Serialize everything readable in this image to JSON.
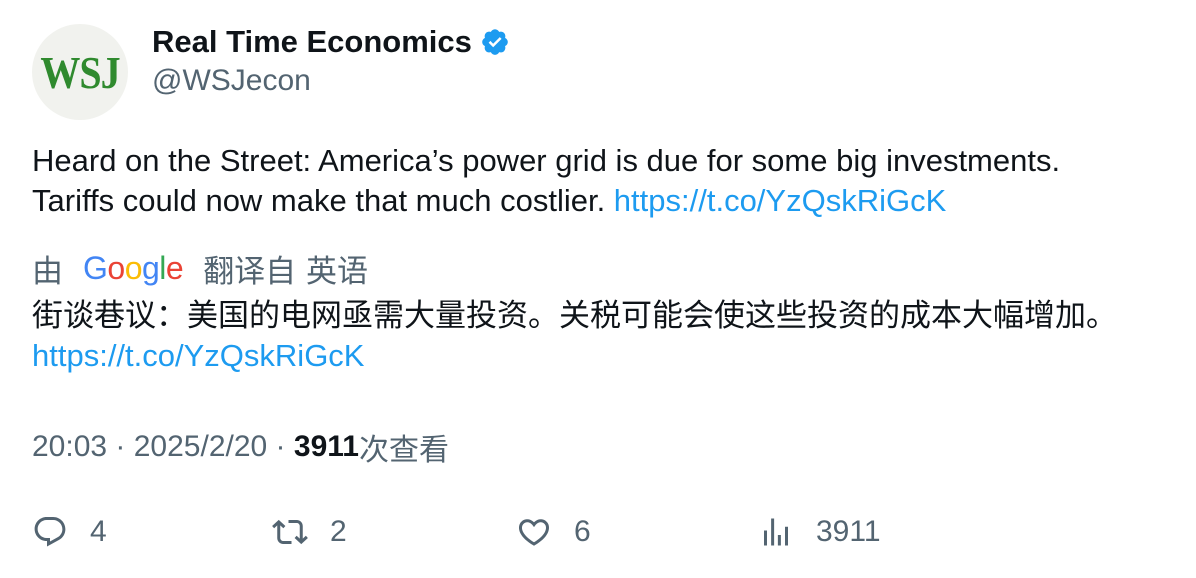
{
  "author": {
    "avatar_text": "WSJ",
    "display_name": "Real Time Economics",
    "handle": "@WSJecon",
    "verified": true
  },
  "tweet": {
    "text_line1": "Heard on the Street: America’s power grid is due for some big investments.",
    "text_line2": "Tariffs could now make that much costlier. ",
    "link": "https://t.co/YzQskRiGcK"
  },
  "translation": {
    "by_label": "由",
    "provider": "Google",
    "from_label": "翻译自 英语",
    "text": "街谈巷议：美国的电网亟需大量投资。关税可能会使这些投资的成本大幅增加。",
    "link": "https://t.co/YzQskRiGcK"
  },
  "meta": {
    "time": "20:03",
    "separator": " · ",
    "date": "2025/2/20",
    "views_count": "3911",
    "views_label": "次查看"
  },
  "actions": {
    "replies": "4",
    "retweets": "2",
    "likes": "6",
    "views": "3911"
  },
  "colors": {
    "link": "#1d9bf0",
    "secondary_text": "#536471",
    "primary_text": "#0f1419",
    "verified_badge": "#1d9bf0",
    "wsj_green": "#2f8a2e"
  },
  "icons": [
    "verified-badge-icon",
    "reply-icon",
    "retweet-icon",
    "like-icon",
    "views-icon"
  ]
}
